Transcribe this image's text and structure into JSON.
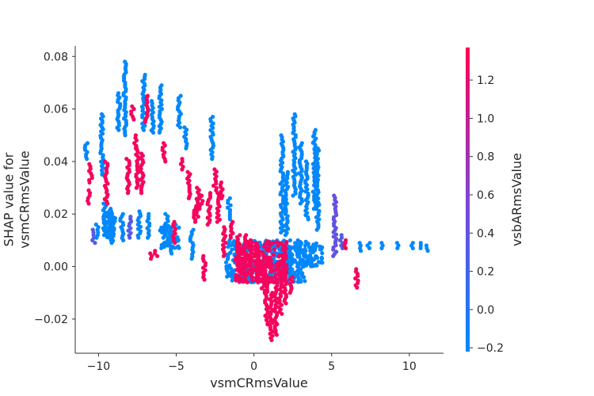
{
  "chart_data": {
    "type": "scatter",
    "xlabel": "vsmCRmsValue",
    "ylabel": "SHAP value for\nvsmCRmsValue",
    "colorbar_label": "vsbARmsValue",
    "xlim": [
      -11.5,
      12.2
    ],
    "ylim": [
      -0.033,
      0.084
    ],
    "x_ticks": [
      -10,
      -5,
      0,
      5,
      10
    ],
    "x_tick_labels": [
      "−10",
      "−5",
      "0",
      "5",
      "10"
    ],
    "y_ticks": [
      -0.02,
      0.0,
      0.02,
      0.04,
      0.06,
      0.08
    ],
    "y_tick_labels": [
      "−0.02",
      "0.00",
      "0.02",
      "0.04",
      "0.06",
      "0.08"
    ],
    "color_range": [
      -0.22,
      1.37
    ],
    "colorbar_ticks": [
      -0.2,
      0.0,
      0.2,
      0.4,
      0.6,
      0.8,
      1.0,
      1.2
    ],
    "colorbar_tick_labels": [
      "−0.2",
      "0.0",
      "0.2",
      "0.4",
      "0.6",
      "0.8",
      "1.0",
      "1.2"
    ],
    "colormap": [
      "#008afb",
      "#7f44d7",
      "#ff0052"
    ],
    "grid": false,
    "columns": [
      {
        "x": -10.8,
        "y0": 0.041,
        "y1": 0.047,
        "c": -0.2
      },
      {
        "x": -10.6,
        "y0": 0.024,
        "y1": 0.029,
        "c": 1.3
      },
      {
        "x": -10.5,
        "y0": 0.032,
        "y1": 0.039,
        "c": 1.3
      },
      {
        "x": -10.3,
        "y0": 0.009,
        "y1": 0.014,
        "c": 0.3
      },
      {
        "x": -10.1,
        "y0": 0.011,
        "y1": 0.016,
        "c": -0.2
      },
      {
        "x": -9.8,
        "y0": 0.035,
        "y1": 0.058,
        "c": -0.2
      },
      {
        "x": -9.6,
        "y0": 0.012,
        "y1": 0.024,
        "c": -0.2
      },
      {
        "x": -9.5,
        "y0": 0.024,
        "y1": 0.04,
        "c": 1.3
      },
      {
        "x": -9.3,
        "y0": 0.01,
        "y1": 0.022,
        "c": -0.2
      },
      {
        "x": -9.1,
        "y0": 0.009,
        "y1": 0.021,
        "c": -0.2
      },
      {
        "x": -8.7,
        "y0": 0.052,
        "y1": 0.066,
        "c": -0.2
      },
      {
        "x": -8.5,
        "y0": 0.01,
        "y1": 0.02,
        "c": -0.2
      },
      {
        "x": -8.3,
        "y0": 0.05,
        "y1": 0.078,
        "c": -0.2
      },
      {
        "x": -8.1,
        "y0": 0.028,
        "y1": 0.041,
        "c": 1.3
      },
      {
        "x": -8.0,
        "y0": 0.011,
        "y1": 0.019,
        "c": 0.3
      },
      {
        "x": -7.8,
        "y0": 0.056,
        "y1": 0.061,
        "c": 1.3
      },
      {
        "x": -7.6,
        "y0": 0.045,
        "y1": 0.05,
        "c": 1.3
      },
      {
        "x": -7.5,
        "y0": 0.03,
        "y1": 0.046,
        "c": 1.3
      },
      {
        "x": -7.4,
        "y0": 0.011,
        "y1": 0.021,
        "c": -0.2
      },
      {
        "x": -7.2,
        "y0": 0.028,
        "y1": 0.043,
        "c": 1.3
      },
      {
        "x": -7.1,
        "y0": 0.052,
        "y1": 0.073,
        "c": -0.2
      },
      {
        "x": -6.9,
        "y0": 0.055,
        "y1": 0.065,
        "c": 1.3
      },
      {
        "x": -6.8,
        "y0": 0.011,
        "y1": 0.02,
        "c": -0.2
      },
      {
        "x": -6.6,
        "y0": 0.003,
        "y1": 0.005,
        "c": 1.3
      },
      {
        "x": -6.5,
        "y0": 0.051,
        "y1": 0.063,
        "c": -0.2
      },
      {
        "x": -6.3,
        "y0": 0.004,
        "y1": 0.006,
        "c": 1.3
      },
      {
        "x": -6.0,
        "y0": 0.051,
        "y1": 0.069,
        "c": -0.2
      },
      {
        "x": -5.8,
        "y0": 0.04,
        "y1": 0.047,
        "c": 1.3
      },
      {
        "x": -5.6,
        "y0": 0.011,
        "y1": 0.02,
        "c": -0.2
      },
      {
        "x": -5.4,
        "y0": 0.005,
        "y1": 0.015,
        "c": -0.2
      },
      {
        "x": -5.1,
        "y0": 0.009,
        "y1": 0.017,
        "c": 1.3
      },
      {
        "x": -4.8,
        "y0": 0.053,
        "y1": 0.065,
        "c": -0.2
      },
      {
        "x": -4.6,
        "y0": 0.037,
        "y1": 0.041,
        "c": 1.3
      },
      {
        "x": -4.4,
        "y0": 0.045,
        "y1": 0.053,
        "c": -0.2
      },
      {
        "x": -4.2,
        "y0": 0.026,
        "y1": 0.036,
        "c": 1.3
      },
      {
        "x": -4.0,
        "y0": 0.003,
        "y1": 0.014,
        "c": -0.2
      },
      {
        "x": -3.8,
        "y0": 0.017,
        "y1": 0.023,
        "c": 1.3
      },
      {
        "x": -3.6,
        "y0": 0.019,
        "y1": 0.03,
        "c": 1.3
      },
      {
        "x": -3.4,
        "y0": 0.022,
        "y1": 0.027,
        "c": 1.3
      },
      {
        "x": -3.2,
        "y0": -0.005,
        "y1": 0.004,
        "c": 1.3
      },
      {
        "x": -2.9,
        "y0": 0.016,
        "y1": 0.028,
        "c": 1.3
      },
      {
        "x": -2.7,
        "y0": 0.041,
        "y1": 0.057,
        "c": -0.2
      },
      {
        "x": -2.5,
        "y0": 0.029,
        "y1": 0.037,
        "c": 1.3
      },
      {
        "x": -2.3,
        "y0": 0.017,
        "y1": 0.028,
        "c": 1.3
      },
      {
        "x": -2.1,
        "y0": 0.026,
        "y1": 0.032,
        "c": 1.3
      },
      {
        "x": -1.9,
        "y0": 0.004,
        "y1": 0.015,
        "c": 1.3
      },
      {
        "x": -1.6,
        "y0": 0.018,
        "y1": 0.026,
        "c": -0.2
      },
      {
        "x": -1.4,
        "y0": 0.011,
        "y1": 0.017,
        "c": 1.3
      },
      {
        "x": -1.0,
        "y0": -0.002,
        "y1": 0.012,
        "c": 1.3
      },
      {
        "x": -0.6,
        "y0": 0.0,
        "y1": 0.012,
        "c": 1.3
      },
      {
        "x": -0.2,
        "y0": -0.004,
        "y1": 0.01,
        "c": 1.3
      },
      {
        "x": 0.2,
        "y0": -0.006,
        "y1": 0.009,
        "c": 1.3
      },
      {
        "x": 0.6,
        "y0": -0.01,
        "y1": 0.002,
        "c": 1.3
      },
      {
        "x": 0.8,
        "y0": -0.022,
        "y1": -0.003,
        "c": 1.3
      },
      {
        "x": 1.1,
        "y0": -0.028,
        "y1": -0.01,
        "c": 1.3
      },
      {
        "x": 1.4,
        "y0": -0.026,
        "y1": -0.004,
        "c": 1.3
      },
      {
        "x": 1.7,
        "y0": -0.018,
        "y1": -0.002,
        "c": 1.3
      },
      {
        "x": 2.0,
        "y0": -0.014,
        "y1": 0.004,
        "c": 1.3
      },
      {
        "x": 2.4,
        "y0": -0.01,
        "y1": -0.004,
        "c": 1.3
      },
      {
        "x": 2.1,
        "y0": 0.012,
        "y1": 0.036,
        "c": -0.2
      },
      {
        "x": 2.6,
        "y0": 0.027,
        "y1": 0.058,
        "c": -0.2
      },
      {
        "x": 3.0,
        "y0": 0.024,
        "y1": 0.047,
        "c": -0.2
      },
      {
        "x": 3.4,
        "y0": 0.018,
        "y1": 0.04,
        "c": -0.2
      },
      {
        "x": 3.9,
        "y0": 0.022,
        "y1": 0.052,
        "c": -0.2
      },
      {
        "x": 4.1,
        "y0": 0.014,
        "y1": 0.045,
        "c": -0.2
      },
      {
        "x": 1.8,
        "y0": 0.013,
        "y1": 0.05,
        "c": -0.2
      },
      {
        "x": 5.2,
        "y0": 0.004,
        "y1": 0.027,
        "c": 0.4
      },
      {
        "x": 5.6,
        "y0": 0.007,
        "y1": 0.012,
        "c": 0.3
      },
      {
        "x": 5.9,
        "y0": 0.007,
        "y1": 0.01,
        "c": 1.3
      },
      {
        "x": 6.6,
        "y0": -0.008,
        "y1": -0.001,
        "c": 1.3
      },
      {
        "x": 6.8,
        "y0": 0.006,
        "y1": 0.009,
        "c": -0.2
      },
      {
        "x": 7.4,
        "y0": 0.007,
        "y1": 0.009,
        "c": -0.2
      },
      {
        "x": 8.3,
        "y0": 0.007,
        "y1": 0.009,
        "c": -0.2
      },
      {
        "x": 9.2,
        "y0": 0.007,
        "y1": 0.009,
        "c": -0.2
      },
      {
        "x": 10.2,
        "y0": 0.007,
        "y1": 0.009,
        "c": -0.2
      },
      {
        "x": 10.7,
        "y0": 0.007,
        "y1": 0.009,
        "c": -0.2
      },
      {
        "x": 11.1,
        "y0": 0.006,
        "y1": 0.008,
        "c": -0.2
      }
    ],
    "clusters": [
      {
        "x0": -1.8,
        "x1": 3.4,
        "y0": -0.006,
        "y1": 0.01,
        "c": -0.2
      },
      {
        "x0": -1.2,
        "x1": 2.2,
        "y0": -0.006,
        "y1": 0.01,
        "c": 1.3
      },
      {
        "x0": 2.0,
        "x1": 4.4,
        "y0": 0.0,
        "y1": 0.009,
        "c": -0.2
      },
      {
        "x0": -6.1,
        "x1": -4.8,
        "y0": 0.007,
        "y1": 0.016,
        "c": -0.2
      },
      {
        "x0": -9.7,
        "x1": -8.9,
        "y0": 0.011,
        "y1": 0.019,
        "c": -0.2
      }
    ]
  }
}
